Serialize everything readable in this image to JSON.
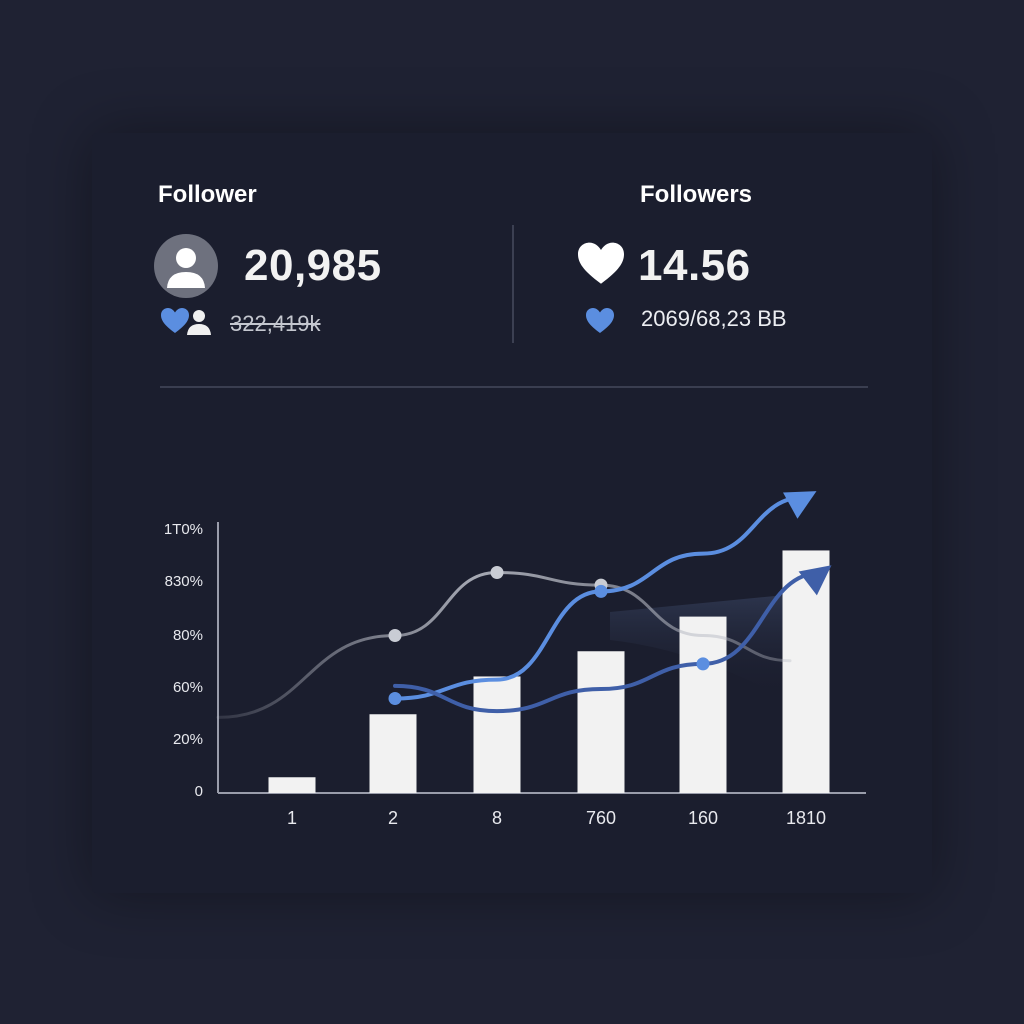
{
  "left_stat": {
    "title": "Follower",
    "value": "20,985",
    "sub_value": "322,419k",
    "icon": "person-icon",
    "sub_icons": [
      "heart-icon",
      "people-icon"
    ]
  },
  "right_stat": {
    "title": "Followers",
    "value": "14.56",
    "sub_value": "2069/68,23 BB",
    "icon": "heart-icon",
    "sub_icon": "small-heart-icon"
  },
  "colors": {
    "background": "#1f2233",
    "card": "#1b1e2e",
    "bar": "#f2f2f2",
    "accent_blue": "#5b8ee0",
    "dark_blue": "#3f5fa8",
    "gray_line": "#b5b8c2",
    "heart_blue": "#5b8ee0"
  },
  "chart_data": {
    "type": "bar",
    "categories": [
      "1",
      "2",
      "8",
      "760",
      "160",
      "1810"
    ],
    "values": [
      5,
      25,
      37,
      45,
      56,
      77
    ],
    "y_ticks": [
      "0",
      "20%",
      "60%",
      "80%",
      "830%",
      "1T0%"
    ],
    "ylim": [
      0,
      100
    ],
    "overlays": [
      {
        "type": "line",
        "style": "gray",
        "values": [
          24,
          50,
          70,
          66,
          50,
          42
        ],
        "markers": [
          1,
          2,
          3
        ]
      },
      {
        "type": "line",
        "style": "blue-arrow",
        "values": [
          28,
          30,
          36,
          64,
          76,
          94
        ],
        "markers": [
          1,
          3
        ]
      },
      {
        "type": "line",
        "style": "dark-blue-arrow",
        "values": [
          28,
          34,
          26,
          33,
          41,
          70
        ],
        "markers": [
          4
        ]
      }
    ],
    "grid": false,
    "legend": "none"
  }
}
